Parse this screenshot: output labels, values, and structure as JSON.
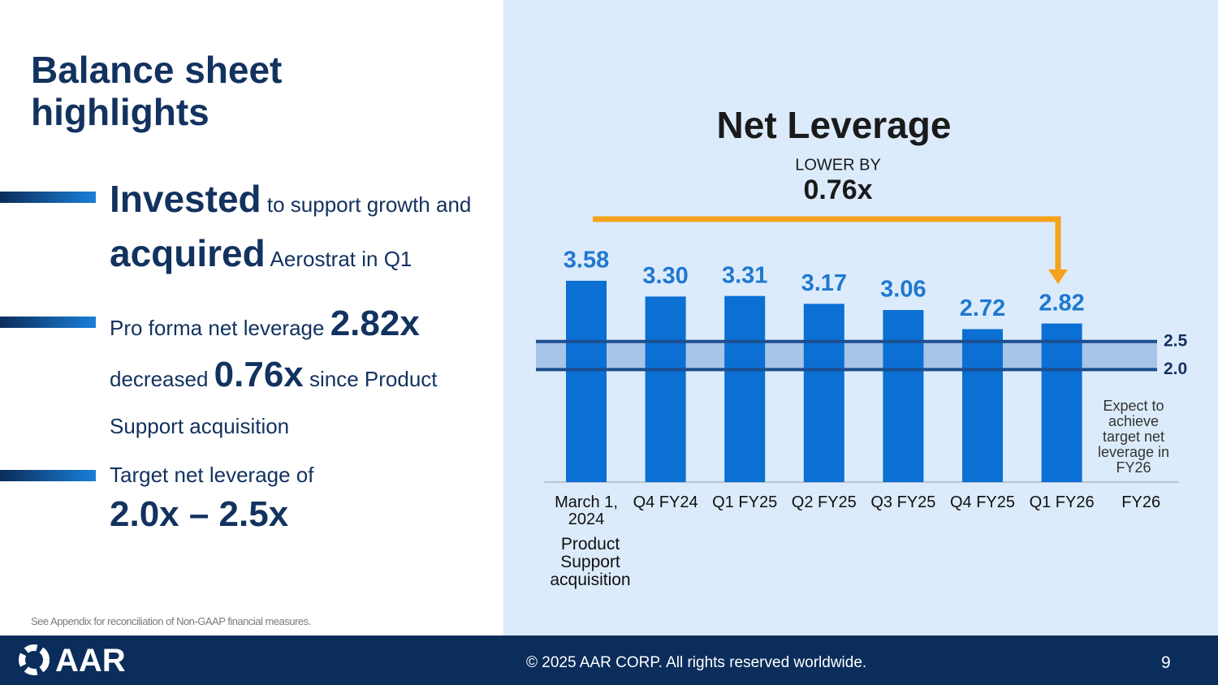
{
  "heading": "Balance sheet highlights",
  "bullets": [
    {
      "parts": [
        "Invested",
        "to support growth and",
        "acquired",
        "Aerostrat in Q1"
      ]
    },
    {
      "parts": [
        "Pro forma net leverage",
        "2.82x",
        "decreased",
        "0.76x",
        "since Product Support acquisition"
      ]
    },
    {
      "parts": [
        "Target net leverage of",
        "2.0x – 2.5x"
      ]
    }
  ],
  "footnote": "See Appendix for reconciliation of Non-GAAP financial measures.",
  "footer": {
    "logo": "AAR",
    "copyright": "© 2025 AAR CORP. All rights reserved worldwide.",
    "page": "9"
  },
  "chart_data": {
    "type": "bar",
    "title": "Net Leverage",
    "subtitle": "LOWER BY",
    "highlight": "0.76x",
    "categories": [
      "March 1, 2024",
      "Q4 FY24",
      "Q1 FY25",
      "Q2 FY25",
      "Q3 FY25",
      "Q4 FY25",
      "Q1 FY26",
      "FY26"
    ],
    "first_category_note": "Product Support acquisition",
    "values": [
      3.58,
      3.3,
      3.31,
      3.17,
      3.06,
      2.72,
      2.82,
      null
    ],
    "value_labels": [
      "3.58",
      "3.30",
      "3.31",
      "3.17",
      "3.06",
      "2.72",
      "2.82",
      null
    ],
    "color": "#0b6fd3",
    "label_color": "#1f78d1",
    "ylim": [
      0,
      4.2
    ],
    "target_band": [
      2.5,
      {
        "value": 2,
        "label": "2.0"
      }
    ],
    "band_note": "Expect to achieve target net leverage in FY26"
  }
}
